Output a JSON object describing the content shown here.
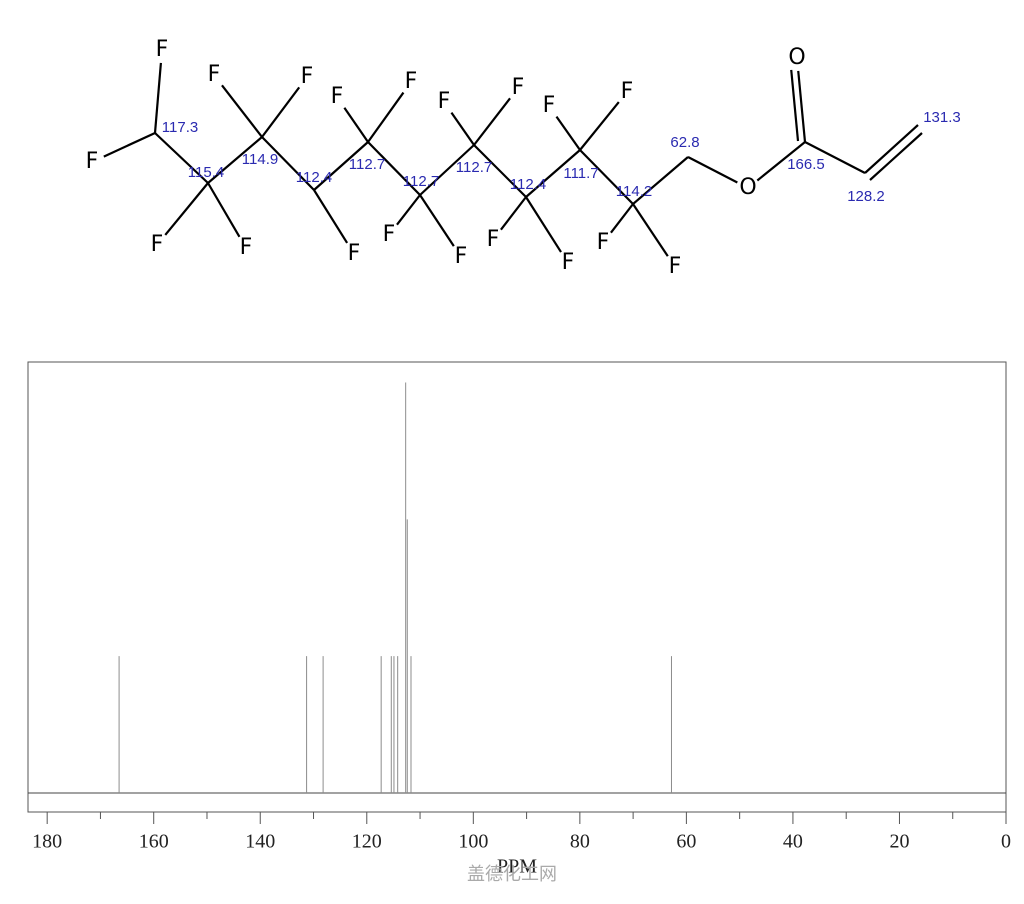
{
  "molecule": {
    "atom_labels": [
      "F",
      "F",
      "F",
      "F",
      "F",
      "F",
      "F",
      "F",
      "F",
      "F",
      "F",
      "F",
      "F",
      "F",
      "F",
      "F",
      "F",
      "F",
      "F",
      "O",
      "O"
    ],
    "shift_labels": [
      "117.3",
      "115.4",
      "114.9",
      "112.4",
      "112.7",
      "112.7",
      "112.7",
      "112.4",
      "111.7",
      "114.2",
      "62.8",
      "166.5",
      "128.2",
      "131.3"
    ]
  },
  "chart_data": {
    "type": "stick",
    "x": [
      166.5,
      131.3,
      128.2,
      117.3,
      115.4,
      114.9,
      114.2,
      112.7,
      112.4,
      111.7,
      62.8
    ],
    "values": [
      1,
      1,
      1,
      1,
      1,
      1,
      1,
      3,
      2,
      1,
      1
    ],
    "color": "#8c8c8c",
    "xlabel": "PPM",
    "xlim": [
      183.6,
      0
    ],
    "xticks": [
      180,
      160,
      140,
      120,
      100,
      80,
      60,
      40,
      20,
      0
    ],
    "xminorticks": [
      170,
      150,
      130,
      110,
      90,
      70,
      50,
      30,
      10
    ],
    "ylim": [
      0,
      3.15
    ]
  },
  "watermark": "盖德化工网"
}
